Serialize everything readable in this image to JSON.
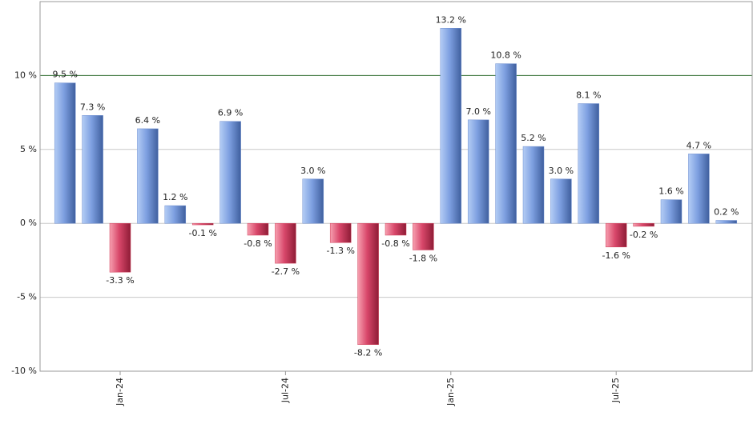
{
  "chart_data": {
    "type": "bar",
    "categories": [
      null,
      null,
      "Jan-24",
      null,
      null,
      null,
      null,
      null,
      "Jul-24",
      null,
      null,
      null,
      null,
      null,
      "Jan-25",
      null,
      null,
      null,
      null,
      null,
      "Jul-25",
      null,
      null,
      null,
      null
    ],
    "values": [
      9.5,
      7.3,
      -3.3,
      6.4,
      1.2,
      -0.1,
      6.9,
      -0.8,
      -2.7,
      3.0,
      -1.3,
      -8.2,
      -0.8,
      -1.8,
      13.2,
      7.0,
      10.8,
      5.2,
      3.0,
      8.1,
      -1.6,
      -0.2,
      1.6,
      4.7,
      0.2
    ],
    "value_labels": [
      "9.5 %",
      "7.3 %",
      "-3.3 %",
      "6.4 %",
      "1.2 %",
      "-0.1 %",
      "6.9 %",
      "-0.8 %",
      "-2.7 %",
      "3.0 %",
      "-1.3 %",
      "-8.2 %",
      "-0.8 %",
      "-1.8 %",
      "13.2 %",
      "7.0 %",
      "10.8 %",
      "5.2 %",
      "3.0 %",
      "8.1 %",
      "-1.6 %",
      "-0.2 %",
      "1.6 %",
      "4.7 %",
      "0.2 %"
    ],
    "positive_color": "#6f8fd0",
    "negative_color": "#d0405a",
    "ylim": [
      -10,
      15
    ],
    "yticks": [
      {
        "value": -10,
        "label": "-10 %"
      },
      {
        "value": -5,
        "label": "-5 %"
      },
      {
        "value": 0,
        "label": "0 %"
      },
      {
        "value": 5,
        "label": "5 %"
      },
      {
        "value": 10,
        "label": "10 %"
      }
    ],
    "grid": true,
    "reference_line": {
      "value": 10,
      "color": "#2e6b2e"
    }
  }
}
